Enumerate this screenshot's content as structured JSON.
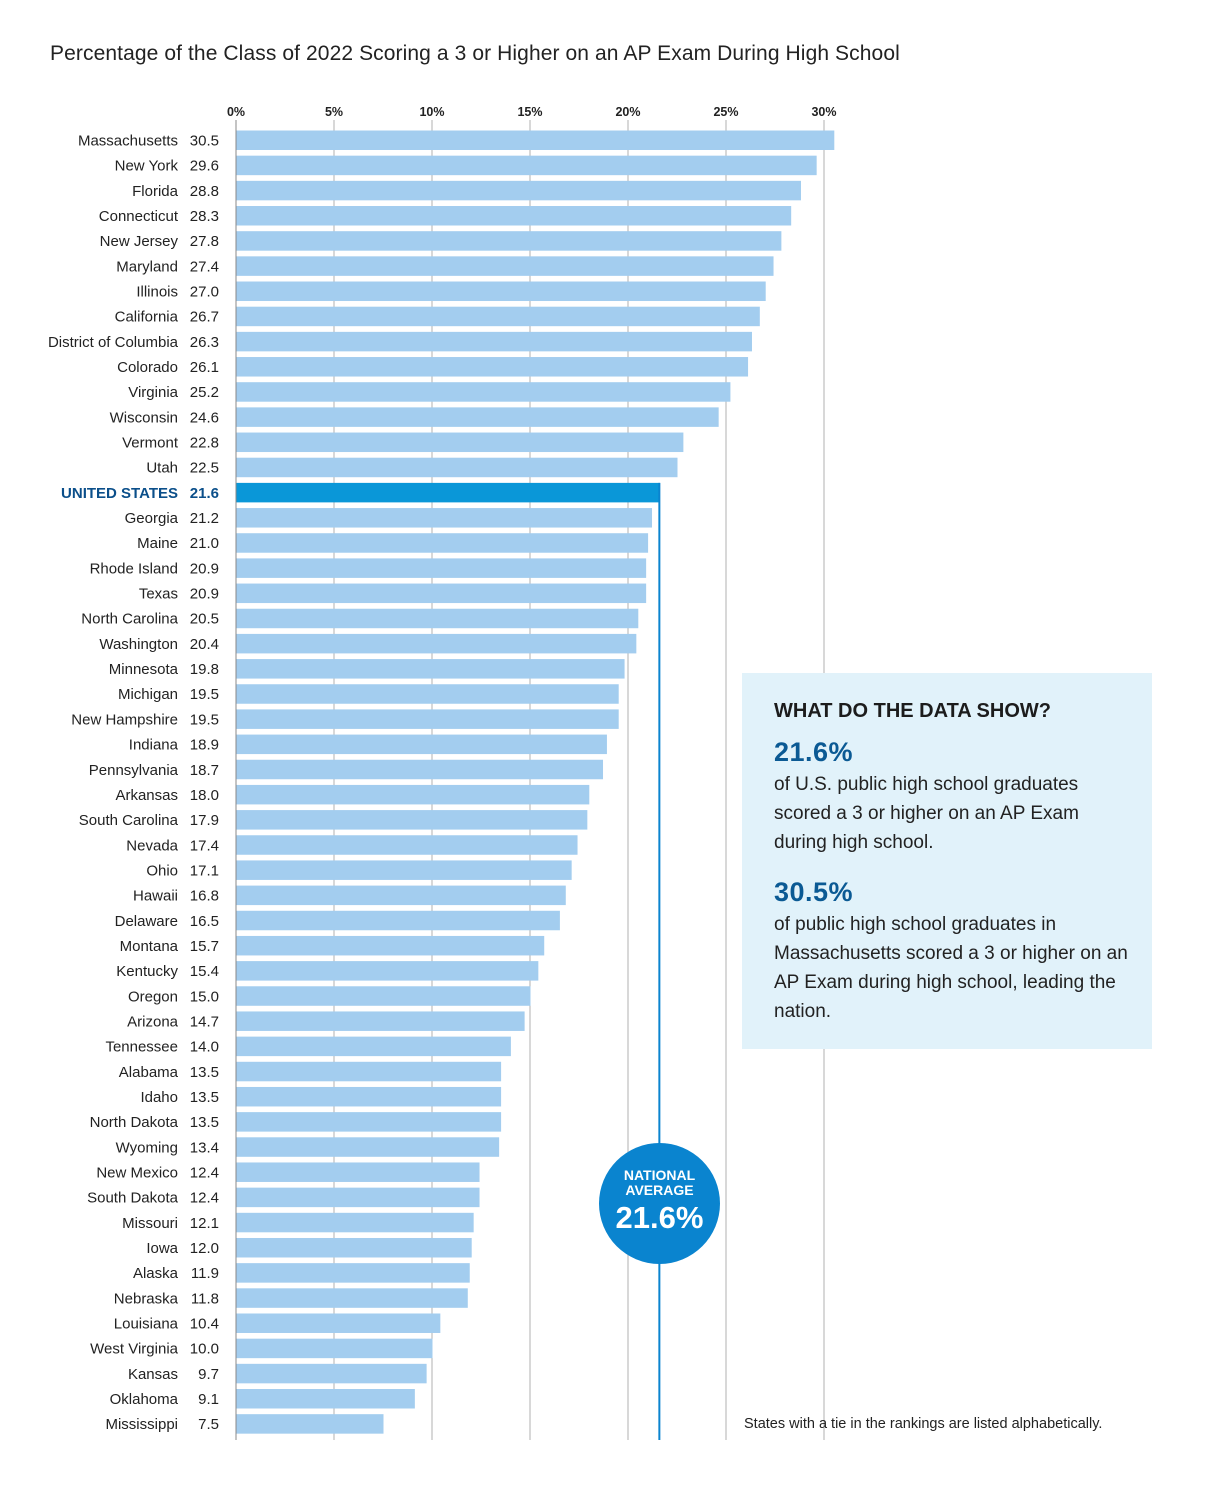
{
  "title": "Percentage of the Class of 2022 Scoring a 3 or Higher on an AP Exam During High School",
  "callout": {
    "heading": "WHAT DO THE DATA SHOW?",
    "stat1_value": "21.6%",
    "stat1_text": "of U.S. public high school graduates scored a 3 or higher on an AP Exam during high school.",
    "stat2_value": "30.5%",
    "stat2_text": "of public high school graduates in Massachusetts scored a 3 or higher on an AP Exam during high school, leading the nation."
  },
  "badge": {
    "label": "NATIONAL AVERAGE",
    "value": "21.6%"
  },
  "note": "States with a tie in the rankings are listed alphabetically.",
  "colors": {
    "bar": "#a3cdef",
    "highlight_bar": "#0a97d8",
    "highlight_text": "#0b4f8a",
    "avg_line": "#0a84cf",
    "grid": "#b0b0b0"
  },
  "chart_data": {
    "type": "bar",
    "orientation": "horizontal",
    "title": "Percentage of the Class of 2022 Scoring a 3 or Higher on an AP Exam During High School",
    "xlabel": "",
    "ylabel": "",
    "xlim": [
      0,
      30
    ],
    "xticks": [
      0,
      5,
      10,
      15,
      20,
      25,
      30
    ],
    "xtick_labels": [
      "0%",
      "5%",
      "10%",
      "15%",
      "20%",
      "25%",
      "30%"
    ],
    "grid": true,
    "reference_line": {
      "value": 21.6,
      "label": "NATIONAL AVERAGE 21.6%"
    },
    "highlight_category": "UNITED STATES",
    "categories": [
      "Massachusetts",
      "New York",
      "Florida",
      "Connecticut",
      "New Jersey",
      "Maryland",
      "Illinois",
      "California",
      "District of Columbia",
      "Colorado",
      "Virginia",
      "Wisconsin",
      "Vermont",
      "Utah",
      "UNITED STATES",
      "Georgia",
      "Maine",
      "Rhode Island",
      "Texas",
      "North Carolina",
      "Washington",
      "Minnesota",
      "Michigan",
      "New Hampshire",
      "Indiana",
      "Pennsylvania",
      "Arkansas",
      "South Carolina",
      "Nevada",
      "Ohio",
      "Hawaii",
      "Delaware",
      "Montana",
      "Kentucky",
      "Oregon",
      "Arizona",
      "Tennessee",
      "Alabama",
      "Idaho",
      "North Dakota",
      "Wyoming",
      "New Mexico",
      "South Dakota",
      "Missouri",
      "Iowa",
      "Alaska",
      "Nebraska",
      "Louisiana",
      "West Virginia",
      "Kansas",
      "Oklahoma",
      "Mississippi"
    ],
    "values": [
      30.5,
      29.6,
      28.8,
      28.3,
      27.8,
      27.4,
      27.0,
      26.7,
      26.3,
      26.1,
      25.2,
      24.6,
      22.8,
      22.5,
      21.6,
      21.2,
      21.0,
      20.9,
      20.9,
      20.5,
      20.4,
      19.8,
      19.5,
      19.5,
      18.9,
      18.7,
      18.0,
      17.9,
      17.4,
      17.1,
      16.8,
      16.5,
      15.7,
      15.4,
      15.0,
      14.7,
      14.0,
      13.5,
      13.5,
      13.5,
      13.4,
      12.4,
      12.4,
      12.1,
      12.0,
      11.9,
      11.8,
      10.4,
      10.0,
      9.7,
      9.1,
      7.5
    ],
    "value_labels": [
      "30.5",
      "29.6",
      "28.8",
      "28.3",
      "27.8",
      "27.4",
      "27.0",
      "26.7",
      "26.3",
      "26.1",
      "25.2",
      "24.6",
      "22.8",
      "22.5",
      "21.6",
      "21.2",
      "21.0",
      "20.9",
      "20.9",
      "20.5",
      "20.4",
      "19.8",
      "19.5",
      "19.5",
      "18.9",
      "18.7",
      "18.0",
      "17.9",
      "17.4",
      "17.1",
      "16.8",
      "16.5",
      "15.7",
      "15.4",
      "15.0",
      "14.7",
      "14.0",
      "13.5",
      "13.5",
      "13.5",
      "13.4",
      "12.4",
      "12.4",
      "12.1",
      "12.0",
      "11.9",
      "11.8",
      "10.4",
      "10.0",
      "9.7",
      "9.1",
      "7.5"
    ]
  }
}
